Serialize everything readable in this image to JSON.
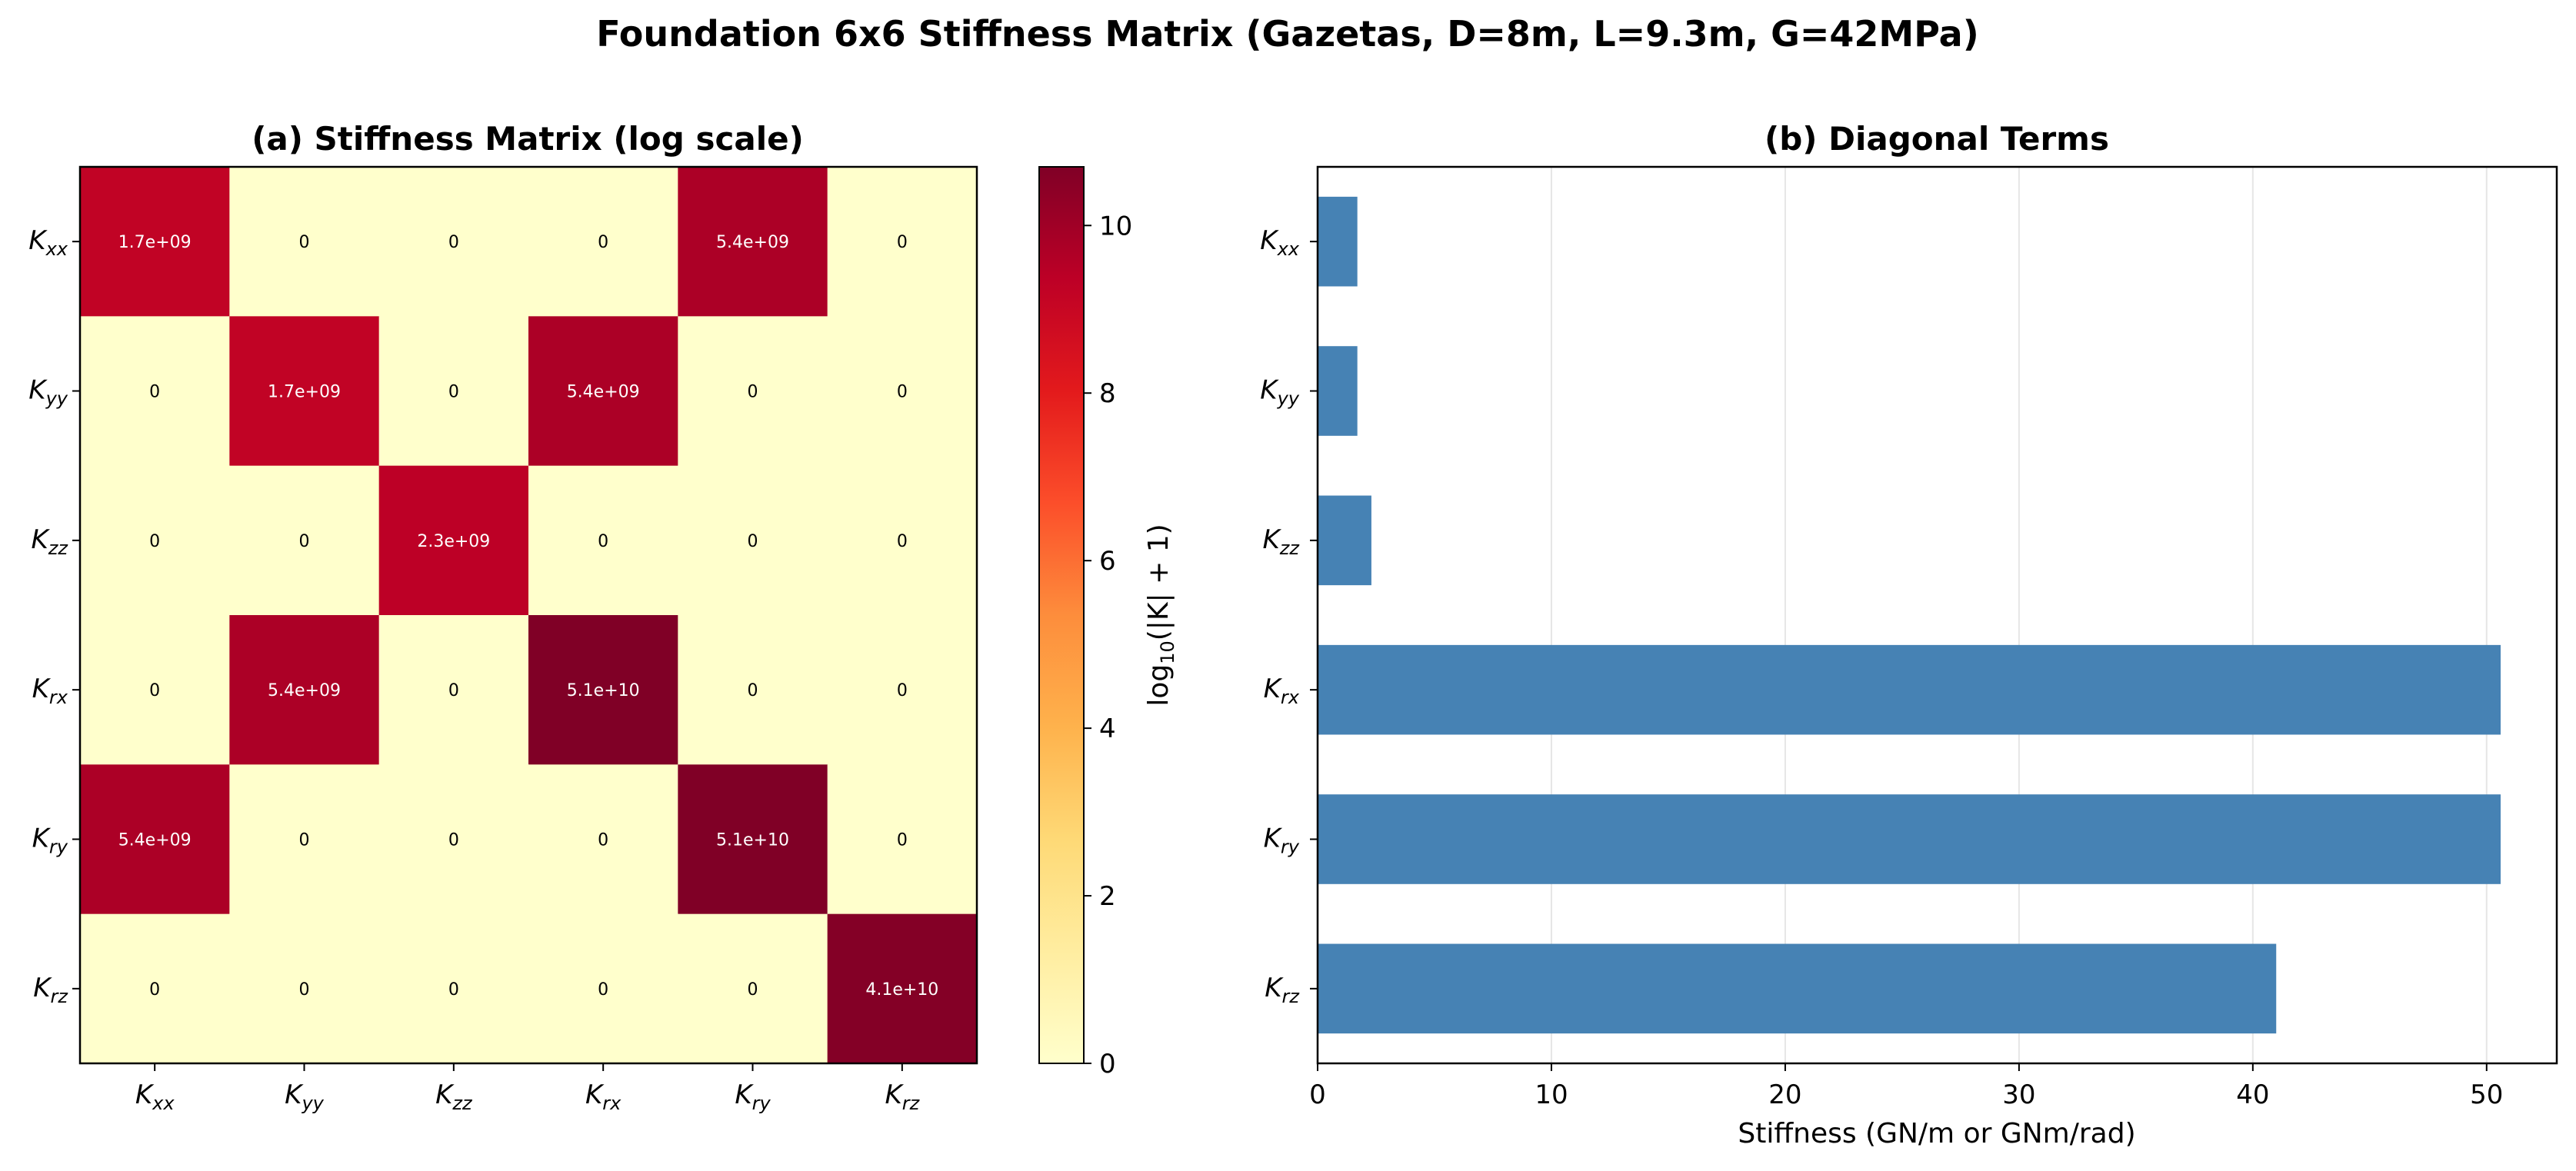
{
  "figure_title": "Foundation 6x6 Stiffness Matrix (Gazetas, D=8m, L=9.3m, G=42MPa)",
  "chart_data": [
    {
      "type": "heatmap",
      "title": "(a) Stiffness Matrix (log scale)",
      "dof_labels": [
        {
          "base": "K",
          "sub": "xx"
        },
        {
          "base": "K",
          "sub": "yy"
        },
        {
          "base": "K",
          "sub": "zz"
        },
        {
          "base": "K",
          "sub": "rx"
        },
        {
          "base": "K",
          "sub": "ry"
        },
        {
          "base": "K",
          "sub": "rz"
        }
      ],
      "matrix": [
        [
          1700000000.0,
          0,
          0,
          0,
          5400000000.0,
          0
        ],
        [
          0,
          1700000000.0,
          0,
          5400000000.0,
          0,
          0
        ],
        [
          0,
          0,
          2300000000.0,
          0,
          0,
          0
        ],
        [
          0,
          5400000000.0,
          0,
          51000000000.0,
          0,
          0
        ],
        [
          5400000000.0,
          0,
          0,
          0,
          51000000000.0,
          0
        ],
        [
          0,
          0,
          0,
          0,
          0,
          41000000000.0
        ]
      ],
      "cell_labels": [
        [
          "1.7e+09",
          "0",
          "0",
          "0",
          "5.4e+09",
          "0"
        ],
        [
          "0",
          "1.7e+09",
          "0",
          "5.4e+09",
          "0",
          "0"
        ],
        [
          "0",
          "0",
          "2.3e+09",
          "0",
          "0",
          "0"
        ],
        [
          "0",
          "5.4e+09",
          "0",
          "5.1e+10",
          "0",
          "0"
        ],
        [
          "5.4e+09",
          "0",
          "0",
          "0",
          "5.1e+10",
          "0"
        ],
        [
          "0",
          "0",
          "0",
          "0",
          "0",
          "4.1e+10"
        ]
      ],
      "colormap": "YlOrRd",
      "colorbar": {
        "label_prefix": "log",
        "label_sub": "10",
        "label_suffix": "(|K| + 1)",
        "range": [
          0,
          10.7
        ],
        "ticks": [
          0,
          2,
          4,
          6,
          8,
          10
        ]
      }
    },
    {
      "type": "bar",
      "orientation": "horizontal",
      "title": "(b) Diagonal Terms",
      "categories": [
        {
          "base": "K",
          "sub": "xx"
        },
        {
          "base": "K",
          "sub": "yy"
        },
        {
          "base": "K",
          "sub": "zz"
        },
        {
          "base": "K",
          "sub": "rx"
        },
        {
          "base": "K",
          "sub": "ry"
        },
        {
          "base": "K",
          "sub": "rz"
        }
      ],
      "values": [
        1.7,
        1.7,
        2.3,
        50.6,
        50.6,
        41.0
      ],
      "xlabel": "Stiffness (GN/m or GNm/rad)",
      "xlim": [
        0,
        53
      ],
      "xticks": [
        0,
        10,
        20,
        30,
        40,
        50
      ],
      "grid": "x",
      "bar_color": "#4682b4"
    }
  ]
}
